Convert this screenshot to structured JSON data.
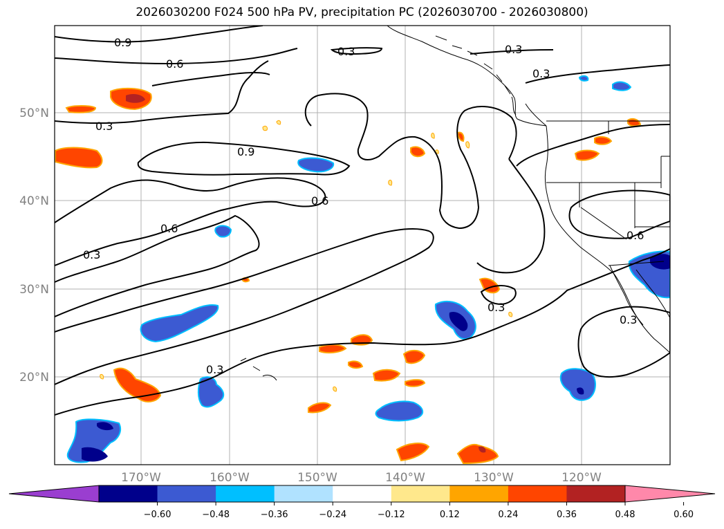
{
  "title": "2026030200 F024 500 hPa PV, precipitation PC (2026030700 - 2026030800)",
  "lat_ticks": [
    "50°N",
    "40°N",
    "30°N",
    "20°N"
  ],
  "lon_ticks": [
    "170°W",
    "160°W",
    "150°W",
    "140°W",
    "130°W",
    "120°W"
  ],
  "contour_labels": [
    "0.9",
    "0.3",
    "0.6",
    "0.3",
    "0.3",
    "0.3",
    "0.9",
    "0.6",
    "0.6",
    "0.3",
    "0.3",
    "0.3",
    "0.3",
    "0.6"
  ],
  "colorbar": {
    "colors": [
      "#9a3ed0",
      "#00008b",
      "#3c5ad2",
      "#00bfff",
      "#b0e2ff",
      "#ffffff",
      "#ffe88c",
      "#ffa500",
      "#ff4500",
      "#b22222",
      "#ff88aa"
    ],
    "tick_labels": [
      "−0.60",
      "−0.48",
      "−0.36",
      "−0.24",
      "−0.12",
      "0.12",
      "0.24",
      "0.36",
      "0.48",
      "0.60"
    ]
  },
  "colors": {
    "precip_neg": "#3c5ad2",
    "precip_neg_core": "#00008b",
    "precip_neg_edge": "#00bfff",
    "precip_pos": "#ff4500",
    "precip_pos_core": "#b22222",
    "precip_pos_edge": "#ffa500",
    "grid": "#b0b0b0"
  }
}
